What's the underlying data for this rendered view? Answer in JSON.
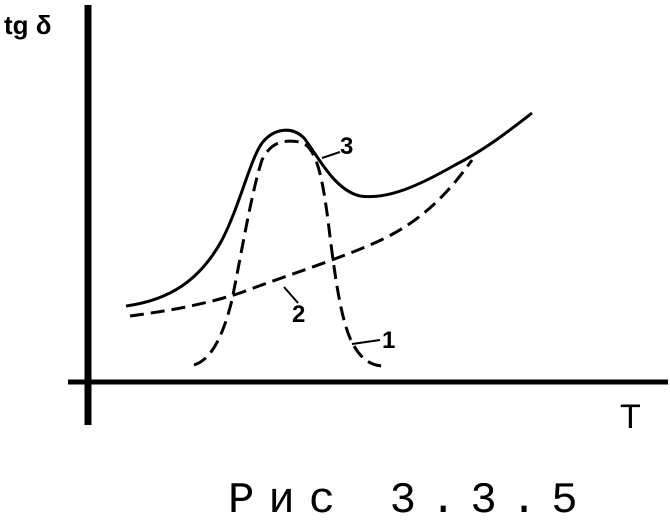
{
  "y_axis_label": "tg δ",
  "x_axis_label": "T",
  "curve_labels": {
    "c1": "1",
    "c2": "2",
    "c3": "3"
  },
  "caption": "Рис 3.3.5",
  "colors": {
    "ink": "#000000",
    "background": "#ffffff"
  }
}
